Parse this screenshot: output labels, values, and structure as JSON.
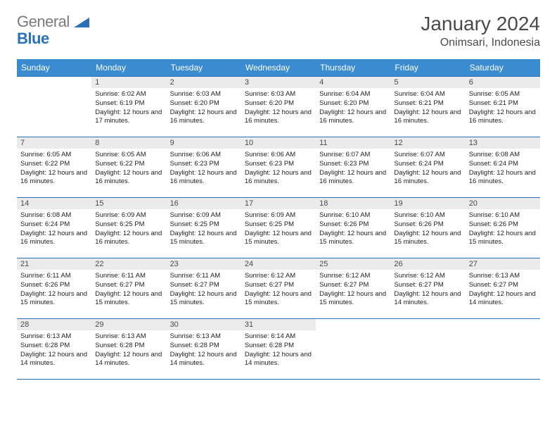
{
  "logo": {
    "word1": "General",
    "word2": "Blue"
  },
  "title": "January 2024",
  "location": "Onimsari, Indonesia",
  "colors": {
    "header_bg": "#3b8bd0",
    "header_text": "#ffffff",
    "daynum_bg": "#ebebeb",
    "border": "#2a71b8",
    "body_text": "#222222",
    "title_text": "#4a4a4a",
    "logo_gray": "#7a7a7a",
    "logo_blue": "#2a71b8"
  },
  "typography": {
    "title_fontsize": 28,
    "location_fontsize": 16,
    "header_fontsize": 12,
    "daynum_fontsize": 11,
    "cell_fontsize": 9.5
  },
  "days_of_week": [
    "Sunday",
    "Monday",
    "Tuesday",
    "Wednesday",
    "Thursday",
    "Friday",
    "Saturday"
  ],
  "weeks": [
    [
      null,
      {
        "n": "1",
        "sunrise": "6:02 AM",
        "sunset": "6:19 PM",
        "daylight": "12 hours and 17 minutes."
      },
      {
        "n": "2",
        "sunrise": "6:03 AM",
        "sunset": "6:20 PM",
        "daylight": "12 hours and 16 minutes."
      },
      {
        "n": "3",
        "sunrise": "6:03 AM",
        "sunset": "6:20 PM",
        "daylight": "12 hours and 16 minutes."
      },
      {
        "n": "4",
        "sunrise": "6:04 AM",
        "sunset": "6:20 PM",
        "daylight": "12 hours and 16 minutes."
      },
      {
        "n": "5",
        "sunrise": "6:04 AM",
        "sunset": "6:21 PM",
        "daylight": "12 hours and 16 minutes."
      },
      {
        "n": "6",
        "sunrise": "6:05 AM",
        "sunset": "6:21 PM",
        "daylight": "12 hours and 16 minutes."
      }
    ],
    [
      {
        "n": "7",
        "sunrise": "6:05 AM",
        "sunset": "6:22 PM",
        "daylight": "12 hours and 16 minutes."
      },
      {
        "n": "8",
        "sunrise": "6:05 AM",
        "sunset": "6:22 PM",
        "daylight": "12 hours and 16 minutes."
      },
      {
        "n": "9",
        "sunrise": "6:06 AM",
        "sunset": "6:23 PM",
        "daylight": "12 hours and 16 minutes."
      },
      {
        "n": "10",
        "sunrise": "6:06 AM",
        "sunset": "6:23 PM",
        "daylight": "12 hours and 16 minutes."
      },
      {
        "n": "11",
        "sunrise": "6:07 AM",
        "sunset": "6:23 PM",
        "daylight": "12 hours and 16 minutes."
      },
      {
        "n": "12",
        "sunrise": "6:07 AM",
        "sunset": "6:24 PM",
        "daylight": "12 hours and 16 minutes."
      },
      {
        "n": "13",
        "sunrise": "6:08 AM",
        "sunset": "6:24 PM",
        "daylight": "12 hours and 16 minutes."
      }
    ],
    [
      {
        "n": "14",
        "sunrise": "6:08 AM",
        "sunset": "6:24 PM",
        "daylight": "12 hours and 16 minutes."
      },
      {
        "n": "15",
        "sunrise": "6:09 AM",
        "sunset": "6:25 PM",
        "daylight": "12 hours and 16 minutes."
      },
      {
        "n": "16",
        "sunrise": "6:09 AM",
        "sunset": "6:25 PM",
        "daylight": "12 hours and 15 minutes."
      },
      {
        "n": "17",
        "sunrise": "6:09 AM",
        "sunset": "6:25 PM",
        "daylight": "12 hours and 15 minutes."
      },
      {
        "n": "18",
        "sunrise": "6:10 AM",
        "sunset": "6:26 PM",
        "daylight": "12 hours and 15 minutes."
      },
      {
        "n": "19",
        "sunrise": "6:10 AM",
        "sunset": "6:26 PM",
        "daylight": "12 hours and 15 minutes."
      },
      {
        "n": "20",
        "sunrise": "6:10 AM",
        "sunset": "6:26 PM",
        "daylight": "12 hours and 15 minutes."
      }
    ],
    [
      {
        "n": "21",
        "sunrise": "6:11 AM",
        "sunset": "6:26 PM",
        "daylight": "12 hours and 15 minutes."
      },
      {
        "n": "22",
        "sunrise": "6:11 AM",
        "sunset": "6:27 PM",
        "daylight": "12 hours and 15 minutes."
      },
      {
        "n": "23",
        "sunrise": "6:11 AM",
        "sunset": "6:27 PM",
        "daylight": "12 hours and 15 minutes."
      },
      {
        "n": "24",
        "sunrise": "6:12 AM",
        "sunset": "6:27 PM",
        "daylight": "12 hours and 15 minutes."
      },
      {
        "n": "25",
        "sunrise": "6:12 AM",
        "sunset": "6:27 PM",
        "daylight": "12 hours and 15 minutes."
      },
      {
        "n": "26",
        "sunrise": "6:12 AM",
        "sunset": "6:27 PM",
        "daylight": "12 hours and 14 minutes."
      },
      {
        "n": "27",
        "sunrise": "6:13 AM",
        "sunset": "6:27 PM",
        "daylight": "12 hours and 14 minutes."
      }
    ],
    [
      {
        "n": "28",
        "sunrise": "6:13 AM",
        "sunset": "6:28 PM",
        "daylight": "12 hours and 14 minutes."
      },
      {
        "n": "29",
        "sunrise": "6:13 AM",
        "sunset": "6:28 PM",
        "daylight": "12 hours and 14 minutes."
      },
      {
        "n": "30",
        "sunrise": "6:13 AM",
        "sunset": "6:28 PM",
        "daylight": "12 hours and 14 minutes."
      },
      {
        "n": "31",
        "sunrise": "6:14 AM",
        "sunset": "6:28 PM",
        "daylight": "12 hours and 14 minutes."
      },
      null,
      null,
      null
    ]
  ],
  "labels": {
    "sunrise": "Sunrise:",
    "sunset": "Sunset:",
    "daylight": "Daylight:"
  }
}
